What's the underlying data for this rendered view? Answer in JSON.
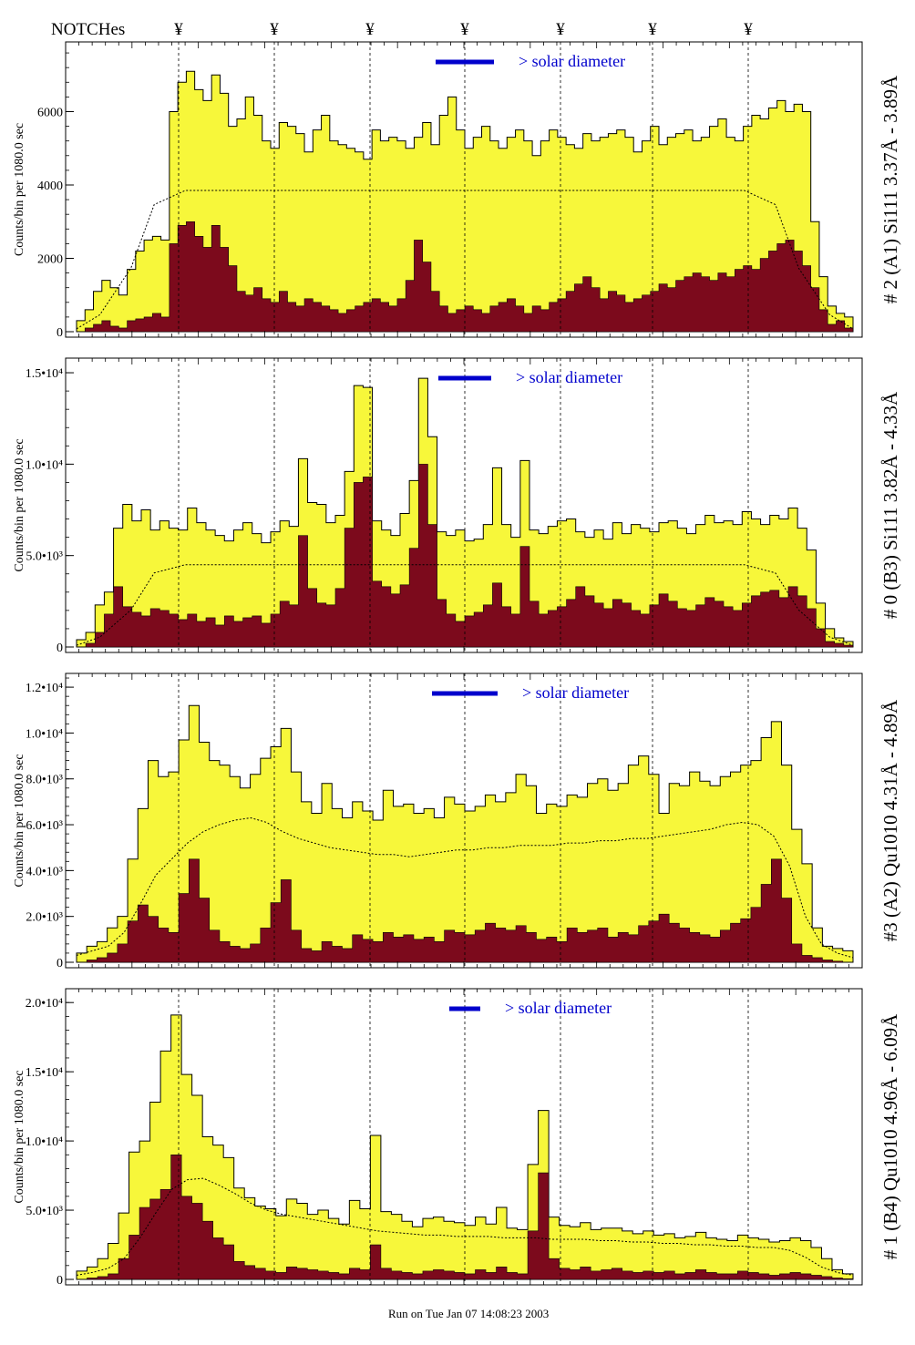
{
  "header": {
    "notches_label": "NOTCHes",
    "notch_symbol": "¥"
  },
  "legend_text": "> solar diameter",
  "footer_text": "Run on Tue Jan 07 14:08:23 2003",
  "colors": {
    "fill": "#f7f73a",
    "dark": "#7c0a1c",
    "axis": "#000000",
    "legend": "#0000cc"
  },
  "chart_data": [
    {
      "type": "histogram",
      "ylabel": "Counts/bin per   1080.0 sec",
      "right_label": "# 2 (A1) Si111  3.37Å - 3.89Å",
      "ylim": [
        0,
        7900
      ],
      "yticks": [
        0,
        2000,
        4000,
        6000
      ],
      "ytick_labels": [
        "0",
        "2000",
        "4000",
        "6000"
      ],
      "plateau": 3850,
      "total": [
        300,
        600,
        1100,
        1400,
        1200,
        1000,
        1700,
        2200,
        2500,
        2600,
        2500,
        6000,
        6800,
        7100,
        6600,
        6300,
        7000,
        6500,
        5600,
        5800,
        6400,
        5900,
        5200,
        5000,
        5700,
        5600,
        5400,
        4900,
        5500,
        5900,
        5200,
        5100,
        5000,
        4900,
        4700,
        5500,
        5200,
        5300,
        5200,
        5000,
        5300,
        5700,
        5100,
        5900,
        6400,
        5500,
        5000,
        5300,
        5600,
        5200,
        5000,
        5300,
        5500,
        5200,
        4800,
        5200,
        5500,
        5300,
        5100,
        5000,
        5400,
        5200,
        5300,
        5400,
        5500,
        5300,
        4900,
        5200,
        5600,
        5100,
        5300,
        5400,
        5500,
        5200,
        5300,
        5600,
        5800,
        5300,
        5200,
        5600,
        5900,
        5800,
        6100,
        6300,
        6000,
        6200,
        6000,
        3000,
        1500,
        700,
        500,
        400
      ],
      "dark": [
        0,
        100,
        200,
        300,
        150,
        100,
        300,
        350,
        400,
        500,
        400,
        2400,
        2900,
        3000,
        2600,
        2300,
        2900,
        2300,
        1800,
        1100,
        1000,
        1200,
        900,
        800,
        1100,
        800,
        700,
        900,
        800,
        700,
        600,
        500,
        600,
        700,
        800,
        900,
        800,
        700,
        900,
        1400,
        2500,
        1900,
        1100,
        700,
        500,
        600,
        700,
        600,
        500,
        700,
        800,
        900,
        700,
        500,
        700,
        600,
        800,
        900,
        1100,
        1300,
        1500,
        1200,
        900,
        1100,
        1000,
        800,
        900,
        1000,
        1100,
        1300,
        1200,
        1400,
        1500,
        1600,
        1500,
        1400,
        1600,
        1500,
        1700,
        1800,
        1700,
        2000,
        2200,
        2400,
        2500,
        2200,
        1800,
        1200,
        600,
        200,
        300,
        100
      ],
      "legend_text": "> solar diameter"
    },
    {
      "type": "histogram",
      "ylabel": "Counts/bin per   1080.0 sec",
      "right_label": "# 0 (B3) Si111  3.82Å - 4.33Å",
      "ylim": [
        0,
        15800
      ],
      "yticks": [
        0,
        5000,
        10000,
        15000
      ],
      "ytick_labels": [
        "0",
        "5.0•10³",
        "1.0•10⁴",
        "1.5•10⁴"
      ],
      "plateau": 4500,
      "total": [
        400,
        800,
        2300,
        3000,
        6500,
        7800,
        6900,
        7500,
        6400,
        6900,
        6500,
        6400,
        7600,
        6800,
        6400,
        6100,
        5800,
        6400,
        6800,
        6200,
        5700,
        6300,
        6900,
        6600,
        10300,
        7900,
        7800,
        6800,
        7200,
        9600,
        14300,
        14200,
        6900,
        6400,
        6100,
        7300,
        9100,
        14700,
        11500,
        6300,
        6100,
        6400,
        5800,
        5900,
        6700,
        9800,
        6700,
        6000,
        10200,
        6400,
        6200,
        6600,
        6900,
        7000,
        6300,
        6000,
        6400,
        5900,
        6800,
        6200,
        6700,
        6500,
        6300,
        6800,
        6900,
        6500,
        6200,
        6700,
        7200,
        6800,
        6900,
        6700,
        7400,
        7000,
        6700,
        7200,
        7000,
        7600,
        6500,
        5300,
        2400,
        1000,
        500,
        300
      ],
      "dark": [
        0,
        200,
        800,
        1800,
        3300,
        2200,
        1900,
        1700,
        2100,
        2000,
        1800,
        1500,
        1800,
        1400,
        1600,
        1200,
        1700,
        1400,
        1600,
        1700,
        1300,
        1800,
        2500,
        2300,
        6100,
        3200,
        2400,
        2300,
        3200,
        6500,
        9000,
        9300,
        3600,
        3300,
        2900,
        3400,
        5400,
        10000,
        6700,
        2600,
        1800,
        1400,
        1700,
        1900,
        2300,
        3500,
        2200,
        1800,
        5500,
        2500,
        1800,
        2000,
        2200,
        2600,
        3300,
        2800,
        2400,
        2100,
        2600,
        2400,
        2000,
        1800,
        2300,
        2900,
        2500,
        2100,
        2000,
        2300,
        2700,
        2500,
        2200,
        2000,
        2400,
        2800,
        3000,
        3100,
        2700,
        3300,
        2800,
        2100,
        1000,
        300,
        200,
        100
      ],
      "legend_text": "> solar diameter"
    },
    {
      "type": "histogram",
      "ylabel": "Counts/bin per   1080.0 sec",
      "right_label": "#3 (A2) Qu1010  4.31Å - 4.89Å",
      "ylim": [
        0,
        12600
      ],
      "yticks": [
        0,
        2000,
        4000,
        6000,
        8000,
        10000,
        12000
      ],
      "ytick_labels": [
        "0",
        "2.0•10³",
        "4.0•10³",
        "6.0•10³",
        "8.0•10³",
        "1.0•10⁴",
        "1.2•10⁴"
      ],
      "plateau_curve": [
        300,
        500,
        700,
        1300,
        2500,
        3800,
        4500,
        5200,
        5700,
        6000,
        6200,
        6300,
        6100,
        5700,
        5400,
        5200,
        5000,
        4900,
        4800,
        4700,
        4700,
        4600,
        4700,
        4800,
        4900,
        4900,
        5000,
        5000,
        5100,
        5100,
        5100,
        5200,
        5200,
        5300,
        5300,
        5400,
        5400,
        5500,
        5600,
        5700,
        5800,
        6000,
        6100,
        6000,
        5500,
        4200,
        2000,
        800,
        400,
        200
      ],
      "total": [
        400,
        700,
        900,
        1500,
        2000,
        4500,
        6700,
        8800,
        8100,
        8300,
        9700,
        11200,
        9600,
        8800,
        8600,
        8100,
        7600,
        8200,
        8900,
        9400,
        10200,
        8300,
        7000,
        6500,
        7800,
        6700,
        6300,
        7000,
        6600,
        6200,
        7500,
        6800,
        6900,
        6500,
        6700,
        6300,
        7200,
        6900,
        6600,
        6800,
        7300,
        7000,
        7400,
        8200,
        7700,
        6500,
        6900,
        6800,
        7300,
        7200,
        7800,
        8000,
        7500,
        7800,
        8600,
        9000,
        8200,
        6500,
        7800,
        7700,
        8300,
        7900,
        7700,
        8100,
        8300,
        8600,
        8800,
        9800,
        10500,
        8600,
        5800,
        4300,
        1500,
        700,
        600,
        500
      ],
      "dark": [
        0,
        100,
        200,
        400,
        800,
        1800,
        2500,
        2000,
        1500,
        1300,
        3000,
        4500,
        2800,
        1400,
        900,
        700,
        600,
        800,
        1500,
        2600,
        3600,
        1400,
        600,
        500,
        900,
        700,
        600,
        1200,
        1000,
        900,
        1300,
        1100,
        1200,
        1000,
        1100,
        900,
        1400,
        1300,
        1200,
        1400,
        1700,
        1500,
        1400,
        1600,
        1300,
        1000,
        1100,
        900,
        1500,
        1300,
        1400,
        1500,
        1100,
        1300,
        1200,
        1600,
        1800,
        2100,
        1700,
        1500,
        1300,
        1200,
        1100,
        1400,
        1700,
        1900,
        2400,
        3400,
        4500,
        2800,
        800,
        300,
        200,
        100,
        50,
        0
      ],
      "legend_text": "> solar diameter"
    },
    {
      "type": "histogram",
      "ylabel": "Counts/bin per   1080.0 sec",
      "right_label": "# 1 (B4) Qu1010 4.96Å - 6.09Å",
      "ylim": [
        0,
        21000
      ],
      "yticks": [
        0,
        5000,
        10000,
        15000,
        20000
      ],
      "ytick_labels": [
        "0",
        "5.0•10³",
        "1.0•10⁴",
        "1.5•10⁴",
        "2.0•10⁴"
      ],
      "plateau_curve": [
        300,
        500,
        800,
        1500,
        3000,
        4800,
        6500,
        7200,
        7300,
        6800,
        6200,
        5500,
        5000,
        4700,
        4500,
        4300,
        4100,
        3900,
        3700,
        3500,
        3400,
        3300,
        3200,
        3200,
        3100,
        3100,
        3100,
        3000,
        3000,
        3000,
        2900,
        2900,
        2900,
        2800,
        2800,
        2700,
        2700,
        2600,
        2600,
        2500,
        2500,
        2400,
        2400,
        2300,
        2300,
        2100,
        1600,
        900,
        500,
        300
      ],
      "total": [
        600,
        900,
        1500,
        2600,
        4800,
        9200,
        10000,
        12800,
        16500,
        19100,
        14800,
        13300,
        10300,
        9700,
        8800,
        6600,
        5900,
        5300,
        5100,
        4600,
        5800,
        5500,
        4700,
        5000,
        4400,
        4000,
        5700,
        5100,
        10400,
        4900,
        4700,
        4200,
        3800,
        4400,
        4500,
        4200,
        4100,
        3900,
        4500,
        4000,
        5200,
        3700,
        3600,
        8300,
        12200,
        4500,
        3900,
        3800,
        4100,
        3600,
        3700,
        3700,
        3500,
        3300,
        3500,
        3200,
        3300,
        3000,
        3100,
        3400,
        3000,
        2900,
        2800,
        3200,
        3000,
        2900,
        2700,
        2800,
        3000,
        2800,
        2300,
        1500,
        700,
        400
      ],
      "dark": [
        0,
        100,
        200,
        400,
        1500,
        3200,
        5200,
        5800,
        6500,
        9000,
        6000,
        5500,
        4200,
        3000,
        2500,
        1300,
        1000,
        800,
        600,
        500,
        900,
        800,
        700,
        600,
        500,
        400,
        800,
        700,
        2500,
        800,
        600,
        500,
        400,
        600,
        700,
        600,
        500,
        400,
        700,
        500,
        900,
        500,
        400,
        3500,
        7700,
        1500,
        800,
        700,
        900,
        600,
        700,
        800,
        600,
        500,
        600,
        500,
        600,
        400,
        500,
        700,
        500,
        400,
        400,
        600,
        500,
        400,
        300,
        400,
        500,
        400,
        300,
        200,
        100,
        50
      ],
      "legend_text": "> solar diameter"
    }
  ]
}
